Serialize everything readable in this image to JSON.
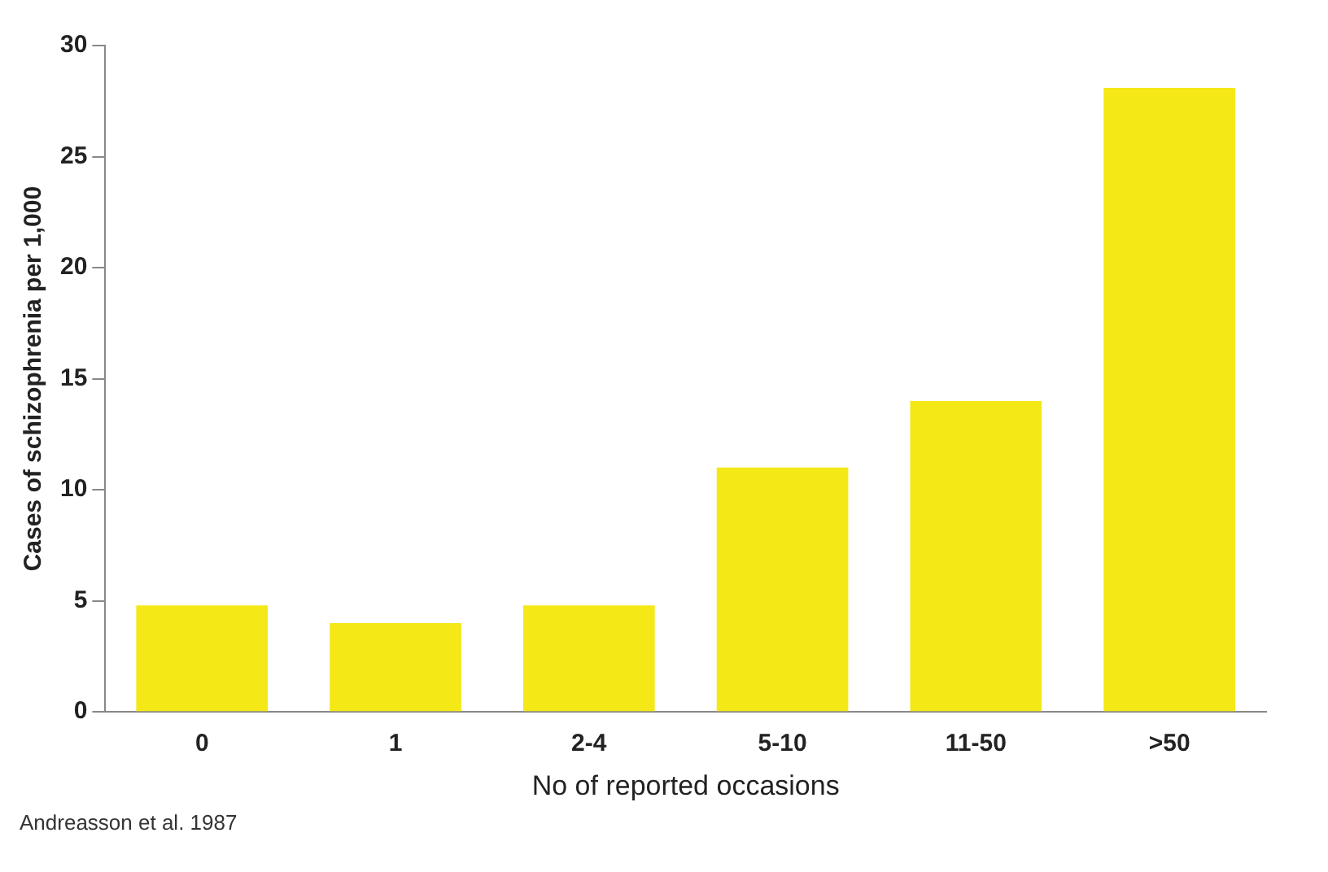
{
  "chart_data": {
    "type": "bar",
    "xlabel": "No of reported occasions",
    "ylabel": "Cases of schizophrenia per 1,000",
    "categories": [
      "0",
      "1",
      "2-4",
      "5-10",
      "11-50",
      ">50"
    ],
    "values": [
      4.8,
      4.0,
      4.8,
      11.0,
      14.0,
      28.1
    ],
    "color": "#f5e817",
    "ylim": [
      0,
      30
    ],
    "yticks": [
      0,
      5,
      10,
      15,
      20,
      25,
      30
    ],
    "grid": false,
    "annotations": [
      "Andreasson et al. 1987"
    ]
  }
}
